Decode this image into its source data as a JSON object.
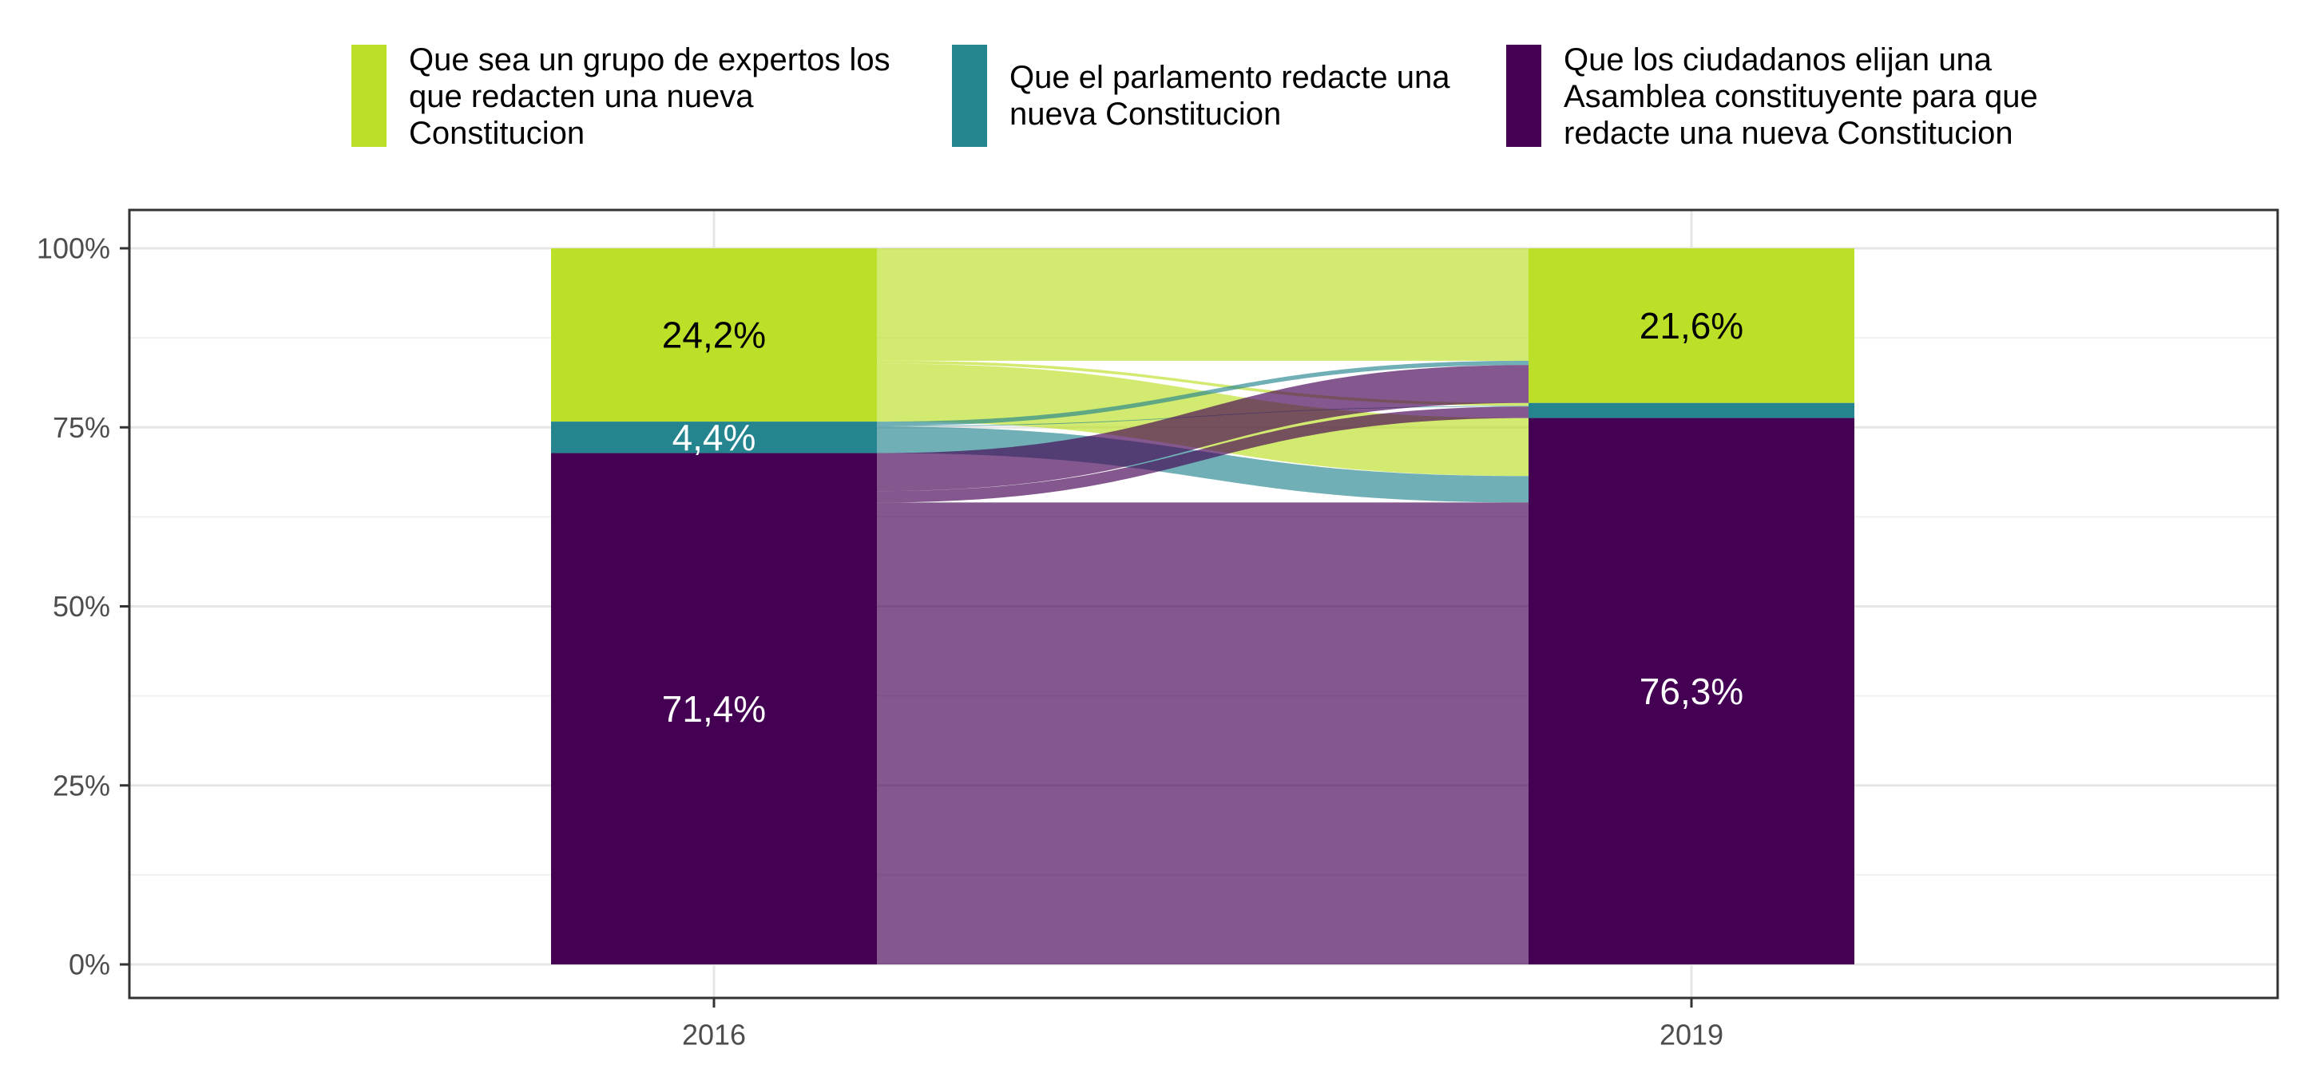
{
  "chart_data": {
    "type": "area",
    "subtype": "alluvial",
    "title": "",
    "xlabel": "",
    "ylabel": "",
    "x": [
      "2016",
      "2019"
    ],
    "ylim": [
      0,
      100
    ],
    "y_ticks": [
      {
        "value": 0,
        "label": "0%"
      },
      {
        "value": 25,
        "label": "25%"
      },
      {
        "value": 50,
        "label": "50%"
      },
      {
        "value": 75,
        "label": "75%"
      },
      {
        "value": 100,
        "label": "100%"
      }
    ],
    "grid": true,
    "legend_position": "top",
    "series": [
      {
        "key": "expertos",
        "name": "Que sea un grupo de expertos los\nque redacten una nueva\nConstitucion",
        "color": "#bcdf27",
        "values": [
          24.2,
          21.6
        ]
      },
      {
        "key": "parlamento",
        "name": "Que el parlamento redacte una\nnueva Constitucion",
        "color": "#25858e",
        "values": [
          4.4,
          2.1
        ]
      },
      {
        "key": "asamblea",
        "name": "Que los ciudadanos elijan una\nAsamblea constituyente para que\nredacte una nueva Constitucion",
        "color": "#440154",
        "values": [
          71.4,
          76.3
        ]
      }
    ],
    "data_labels": [
      {
        "x": "2016",
        "series": "expertos",
        "text": "24,2%",
        "value": 24.2
      },
      {
        "x": "2016",
        "series": "parlamento",
        "text": "4,4%",
        "value": 4.4
      },
      {
        "x": "2016",
        "series": "asamblea",
        "text": "71,4%",
        "value": 71.4
      },
      {
        "x": "2019",
        "series": "expertos",
        "text": "21,6%",
        "value": 21.6
      },
      {
        "x": "2019",
        "series": "asamblea",
        "text": "76,3%",
        "value": 76.3
      }
    ],
    "flows": [
      {
        "from": "expertos",
        "to": "expertos",
        "value": 15.7
      },
      {
        "from": "expertos",
        "to": "parlamento",
        "value": 0.4
      },
      {
        "from": "expertos",
        "to": "asamblea",
        "value": 8.1
      },
      {
        "from": "parlamento",
        "to": "expertos",
        "value": 0.6
      },
      {
        "from": "parlamento",
        "to": "parlamento",
        "value": 0.1
      },
      {
        "from": "parlamento",
        "to": "asamblea",
        "value": 3.7
      },
      {
        "from": "asamblea",
        "to": "expertos",
        "value": 5.3
      },
      {
        "from": "asamblea",
        "to": "parlamento",
        "value": 1.6
      },
      {
        "from": "asamblea",
        "to": "asamblea",
        "value": 64.5
      }
    ]
  }
}
